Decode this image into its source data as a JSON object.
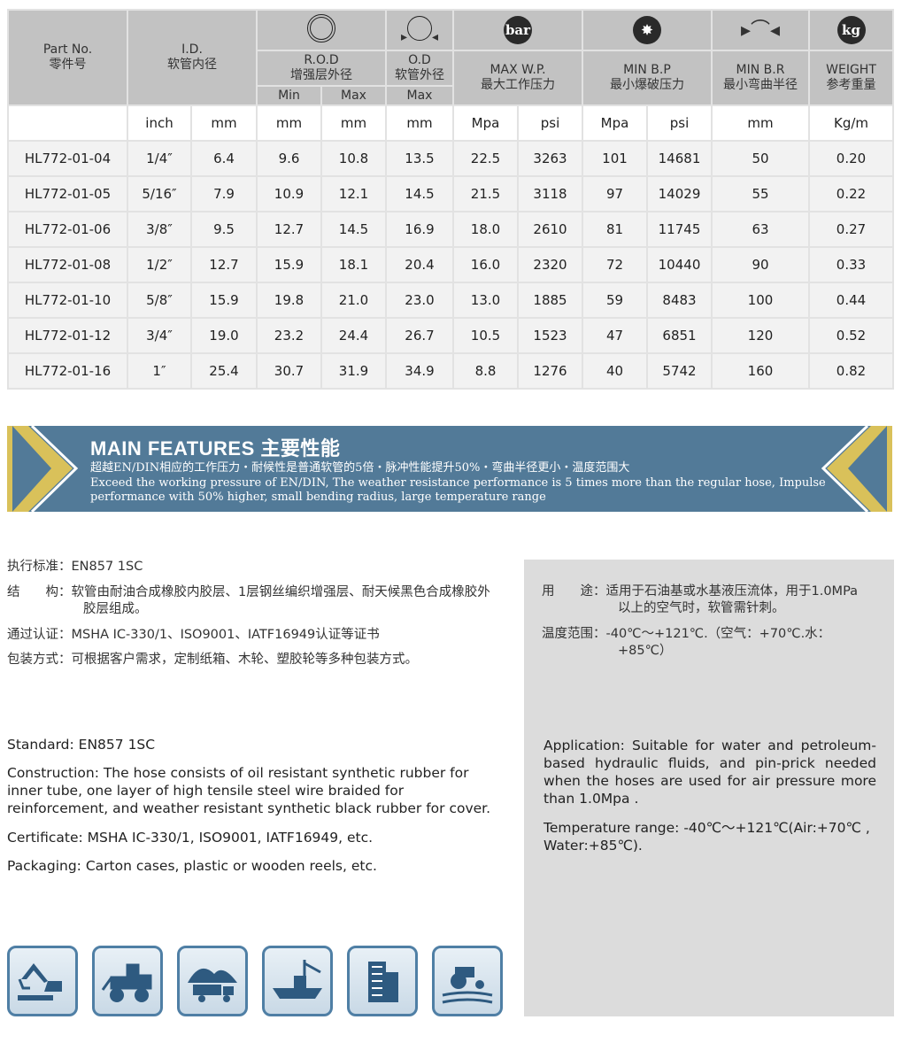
{
  "table": {
    "headers": {
      "part_no": "Part No.",
      "part_no_cn": "零件号",
      "id": "I.D.",
      "id_cn": "软管内径",
      "rod": "R.O.D",
      "rod_cn": "增强层外径",
      "od": "O.D",
      "od_cn": "软管外径",
      "min": "Min",
      "max": "Max",
      "wp": "MAX W.P.",
      "wp_cn": "最大工作压力",
      "bp": "MIN B.P",
      "bp_cn": "最小爆破压力",
      "br": "MIN B.R",
      "br_cn": "最小弯曲半径",
      "weight": "WEIGHT",
      "weight_cn": "参考重量",
      "bar_icon": "bar",
      "kg_icon": "kg"
    },
    "units": [
      "",
      "inch",
      "mm",
      "mm",
      "mm",
      "mm",
      "Mpa",
      "psi",
      "Mpa",
      "psi",
      "mm",
      "Kg/m"
    ],
    "rows": [
      [
        "HL772-01-04",
        "1/4″",
        "6.4",
        "9.6",
        "10.8",
        "13.5",
        "22.5",
        "3263",
        "101",
        "14681",
        "50",
        "0.20"
      ],
      [
        "HL772-01-05",
        "5/16″",
        "7.9",
        "10.9",
        "12.1",
        "14.5",
        "21.5",
        "3118",
        "97",
        "14029",
        "55",
        "0.22"
      ],
      [
        "HL772-01-06",
        "3/8″",
        "9.5",
        "12.7",
        "14.5",
        "16.9",
        "18.0",
        "2610",
        "81",
        "11745",
        "63",
        "0.27"
      ],
      [
        "HL772-01-08",
        "1/2″",
        "12.7",
        "15.9",
        "18.1",
        "20.4",
        "16.0",
        "2320",
        "72",
        "10440",
        "90",
        "0.33"
      ],
      [
        "HL772-01-10",
        "5/8″",
        "15.9",
        "19.8",
        "21.0",
        "23.0",
        "13.0",
        "1885",
        "59",
        "8483",
        "100",
        "0.44"
      ],
      [
        "HL772-01-12",
        "3/4″",
        "19.0",
        "23.2",
        "24.4",
        "26.7",
        "10.5",
        "1523",
        "47",
        "6851",
        "120",
        "0.52"
      ],
      [
        "HL772-01-16",
        "1″",
        "25.4",
        "30.7",
        "31.9",
        "34.9",
        "8.8",
        "1276",
        "40",
        "5742",
        "160",
        "0.82"
      ]
    ]
  },
  "banner": {
    "title": "MAIN FEATURES 主要性能",
    "cn": "超越EN/DIN相应的工作压力・耐候性是普通软管的5倍・脉冲性能提升50%・弯曲半径更小・温度范围大",
    "en": "Exceed the working pressure of EN/DIN, The weather resistance performance is 5 times more than the regular hose, Impulse performance with 50% higher, small bending radius, large temperature range",
    "accent": "#d9c15a",
    "bg": "#527a98"
  },
  "cn_left": [
    "执行标准：EN857 1SC",
    "结　　构：软管由耐油合成橡胶内胶层、1层钢丝编织增强层、耐天候黑色合成橡胶外胶层组成。",
    "通过认证：MSHA IC-330/1、ISO9001、IATF16949认证等证书",
    "包装方式：可根据客户需求，定制纸箱、木轮、塑胶轮等多种包装方式。"
  ],
  "cn_right": [
    "用　　途：适用于石油基或水基液压流体，用于1.0MPa以上的空气时，软管需针刺。",
    "温度范围：-40℃～+121℃.（空气：+70℃.水：+85℃）"
  ],
  "en_left": [
    "Standard: EN857 1SC",
    "Construction:  The hose consists of oil resistant synthetic rubber for inner tube,  one layer of high tensile steel wire braided for reinforcement, and weather resistant synthetic black rubber for cover.",
    "Certificate: MSHA IC-330/1, ISO9001, IATF16949,  etc.",
    "Packaging: Carton cases, plastic or wooden reels, etc."
  ],
  "en_right": [
    "Application: Suitable for water and petroleum-based hydraulic fluids, and pin-prick needed when the hoses are used for air pressure more than 1.0Mpa .",
    "Temperature range: -40℃～+121℃(Air:+70℃ , Water:+85℃)."
  ],
  "application_icons": [
    "excavator-icon",
    "loader-icon",
    "mining-truck-icon",
    "ship-icon",
    "building-icon",
    "tractor-icon"
  ]
}
